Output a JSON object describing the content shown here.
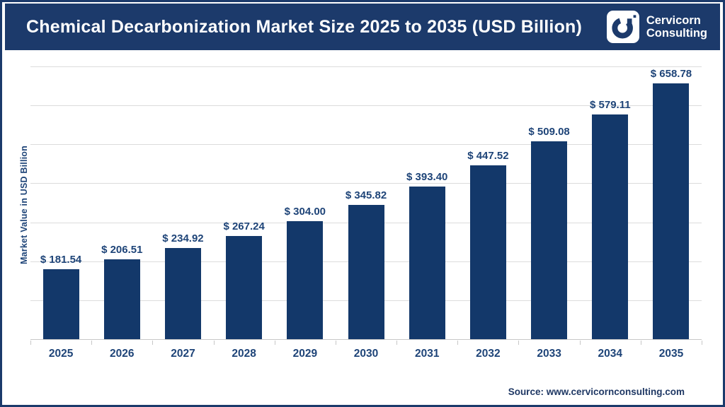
{
  "header": {
    "title": "Chemical Decarbonization Market Size 2025 to 2035 (USD Billion)",
    "logo": {
      "line1": "Cervicorn",
      "line2": "Consulting"
    }
  },
  "chart_data": {
    "type": "bar",
    "title": "Chemical Decarbonization Market Size 2025 to 2035 (USD Billion)",
    "categories": [
      "2025",
      "2026",
      "2027",
      "2028",
      "2029",
      "2030",
      "2031",
      "2032",
      "2033",
      "2034",
      "2035"
    ],
    "values": [
      181.54,
      206.51,
      234.92,
      267.24,
      304.0,
      345.82,
      393.4,
      447.52,
      509.08,
      579.11,
      658.78
    ],
    "value_prefix": "$ ",
    "xlabel": "",
    "ylabel": "Market Value in USD Billion",
    "ylim": [
      0,
      700
    ],
    "gridline_step": 100,
    "grid": true,
    "legend": false,
    "bar_color": "#13386A",
    "label_color": "#1E4478"
  },
  "footer": {
    "source": "Source: www.cervicornconsulting.com"
  },
  "colors": {
    "navy": "#1C3A6B",
    "gridline": "#DCDCDC",
    "axis": "#C7C7C7",
    "background": "#FFFFFF"
  }
}
